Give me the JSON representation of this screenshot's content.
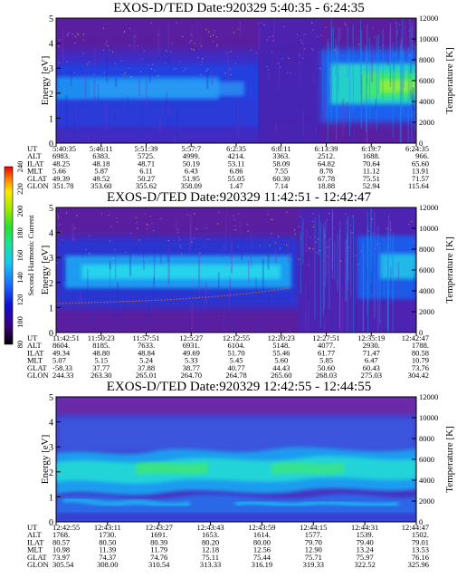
{
  "chart_data": [
    {
      "type": "heatmap",
      "title": "EXOS-D/TED   Date:920329  5:40:35 - 6:24:35",
      "ylabel": "Energy [eV]",
      "y2label": "Temperature [K]",
      "ylim": [
        0,
        5
      ],
      "y2lim": [
        0,
        12000
      ],
      "yticks": [
        "0",
        "1",
        "2",
        "3",
        "4",
        "5"
      ],
      "y2ticks": [
        "0",
        "2000",
        "4000",
        "6000",
        "8000",
        "10000",
        "12000"
      ],
      "ephemeris": {
        "labels": [
          "UT",
          "ALT",
          "ILAT",
          "MLT",
          "GLAT",
          "GLON"
        ],
        "columns": [
          [
            "5:40:35",
            "6983.",
            "48.25",
            "5.66",
            "49.39",
            "351.78"
          ],
          [
            "5:46:11",
            "6383.",
            "48.18",
            "5.87",
            "49.52",
            "353.60"
          ],
          [
            "5:51:39",
            "5725.",
            "48.71",
            "6.11",
            "50.27",
            "355.62"
          ],
          [
            "5:57:7",
            "4999.",
            "50.19",
            "6.43",
            "51.95",
            "358.09"
          ],
          [
            "6:2:35",
            "4214.",
            "53.11",
            "6.86",
            "55.05",
            "1.47"
          ],
          [
            "6:8:11",
            "3363.",
            "58.09",
            "7.55",
            "60.30",
            "7.14"
          ],
          [
            "6:13:39",
            "2512.",
            "64.82",
            "8.78",
            "67.78",
            "18.88"
          ],
          [
            "6:19:7",
            "1688.",
            "70.64",
            "11.12",
            "75.51",
            "52.94"
          ],
          [
            "6:24:35",
            "966.",
            "65.60",
            "13.91",
            "71.57",
            "115.64"
          ]
        ]
      }
    },
    {
      "type": "heatmap",
      "title": "EXOS-D/TED   Date:920329  11:42:51 - 12:42:47",
      "ylabel": "Energy [eV]",
      "y2label": "Temperature [K]",
      "ylim": [
        0,
        5
      ],
      "y2lim": [
        0,
        12000
      ],
      "yticks": [
        "0",
        "1",
        "2",
        "3",
        "4",
        "5"
      ],
      "y2ticks": [
        "0",
        "2000",
        "4000",
        "6000",
        "8000",
        "10000",
        "12000"
      ],
      "ephemeris": {
        "labels": [
          "UT",
          "ALT",
          "ILAT",
          "MLT",
          "GLAT",
          "GLON"
        ],
        "columns": [
          [
            "11:42:51",
            "8604.",
            "49.34",
            "5.07",
            "-58.33",
            "244.33"
          ],
          [
            "11:50:23",
            "8185.",
            "48.80",
            "5.15",
            "37.77",
            "263.30"
          ],
          [
            "11:57:51",
            "7633.",
            "48.84",
            "5.24",
            "37.88",
            "265.01"
          ],
          [
            "12:5:27",
            "6931.",
            "49.69",
            "5.33",
            "38.77",
            "264.70"
          ],
          [
            "12:12:55",
            "6104.",
            "51.70",
            "5.45",
            "40.77",
            "264.78"
          ],
          [
            "12:20:23",
            "5148.",
            "55.46",
            "5.60",
            "44.43",
            "265.60"
          ],
          [
            "12:27:51",
            "4077.",
            "61.77",
            "5.85",
            "50.60",
            "268.03"
          ],
          [
            "12:35:19",
            "2930.",
            "71.47",
            "6.47",
            "60.43",
            "275.03"
          ],
          [
            "12:42:47",
            "1788.",
            "80.58",
            "10.79",
            "73.76",
            "304.42"
          ]
        ]
      }
    },
    {
      "type": "heatmap",
      "title": "EXOS-D/TED   Date:920329  12:42:55 - 12:44:55",
      "ylabel": "Energy [eV]",
      "y2label": "Temperature [K]",
      "ylim": [
        0,
        5
      ],
      "y2lim": [
        0,
        12000
      ],
      "yticks": [
        "0",
        "1",
        "2",
        "3",
        "4",
        "5"
      ],
      "y2ticks": [
        "0",
        "2000",
        "4000",
        "6000",
        "8000",
        "10000",
        "12000"
      ],
      "ephemeris": {
        "labels": [
          "UT",
          "ALT",
          "ILAT",
          "MLT",
          "GLAT",
          "GLON"
        ],
        "columns": [
          [
            "12:42:55",
            "1768.",
            "80.57",
            "10.98",
            "73.97",
            "305.54"
          ],
          [
            "12:43:11",
            "1730.",
            "80.50",
            "11.39",
            "74.37",
            "308.00"
          ],
          [
            "12:43:27",
            "1691.",
            "80.39",
            "11.79",
            "74.76",
            "310.54"
          ],
          [
            "12:43:43",
            "1653.",
            "80.20",
            "12.18",
            "75.11",
            "313.33"
          ],
          [
            "12:43:59",
            "1614.",
            "80.00",
            "12.56",
            "75.44",
            "316.19"
          ],
          [
            "12:44:15",
            "1577.",
            "79.70",
            "12.90",
            "75.71",
            "319.33"
          ],
          [
            "12:44:31",
            "1539.",
            "79.40",
            "13.24",
            "75.97",
            "322.52"
          ],
          [
            "12:44:47",
            "1502.",
            "79.01",
            "13.53",
            "76.16",
            "325.96"
          ]
        ]
      }
    }
  ],
  "colorbar": {
    "label": "Second Harmonic Current",
    "ticks": [
      "80",
      "100",
      "120",
      "140",
      "160",
      "180",
      "200",
      "220",
      "240"
    ],
    "range": [
      80,
      240
    ]
  }
}
